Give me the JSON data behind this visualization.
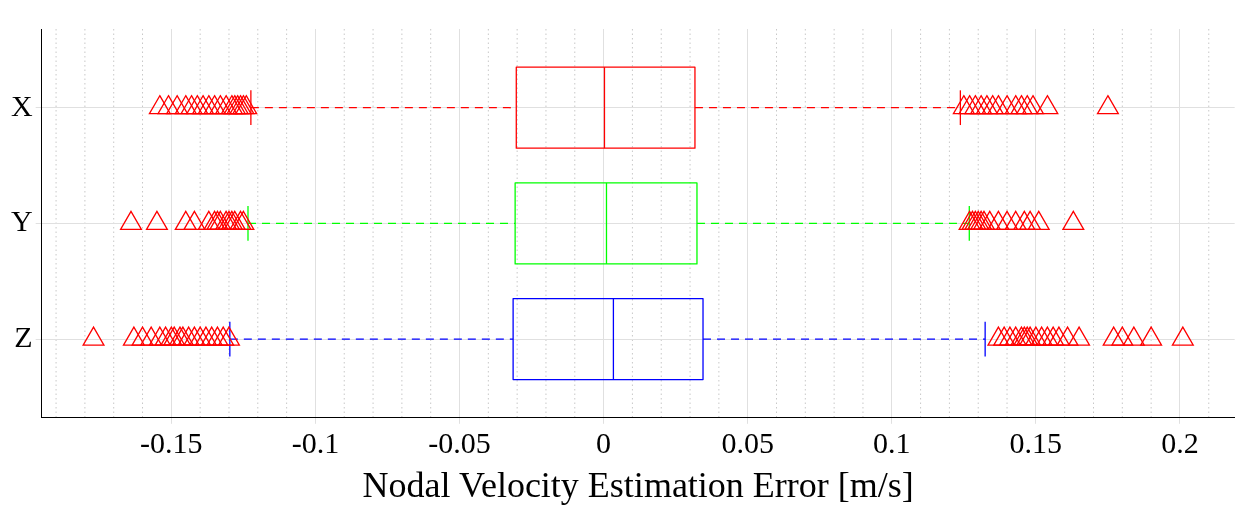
{
  "chart_data": {
    "type": "box",
    "orientation": "horizontal",
    "xlabel": "Nodal Velocity Estimation Error [m/s]",
    "categories": [
      "X",
      "Y",
      "Z"
    ],
    "colors": [
      "#ff0000",
      "#00ff00",
      "#0000ff"
    ],
    "line_style": "dashed",
    "grid": true,
    "boxes": [
      {
        "low": -0.1224,
        "q1": -0.0303,
        "median": 0.0003,
        "q3": 0.0317,
        "high": 0.1238
      },
      {
        "low": -0.1234,
        "q1": -0.0307,
        "median": 0.001,
        "q3": 0.0324,
        "high": 0.1269
      },
      {
        "low": -0.1297,
        "q1": -0.0314,
        "median": 0.0034,
        "q3": 0.0345,
        "high": 0.1324
      }
    ],
    "series": [
      {
        "type": "scatter",
        "color": "#ff0000",
        "marker": "triangle",
        "x": [
          "X",
          "X",
          "X",
          "X",
          "X",
          "X",
          "X",
          "X",
          "X",
          "X",
          "X",
          "X",
          "X",
          "X",
          "X",
          "X",
          "X",
          "X",
          "X",
          "X",
          "X",
          "X",
          "X",
          "X",
          "X",
          "X",
          "X",
          "X",
          "X",
          "X",
          "X",
          "Y",
          "Y",
          "Y",
          "Y",
          "Y",
          "Y",
          "Y",
          "Y",
          "Y",
          "Y",
          "Y",
          "Y",
          "Y",
          "Y",
          "Y",
          "Y",
          "Y",
          "Y",
          "Y",
          "Y",
          "Y",
          "Y",
          "Y",
          "Y",
          "Y",
          "Y",
          "Y",
          "Y",
          "Z",
          "Z",
          "Z",
          "Z",
          "Z",
          "Z",
          "Z",
          "Z",
          "Z",
          "Z",
          "Z",
          "Z",
          "Z",
          "Z",
          "Z",
          "Z",
          "Z",
          "Z",
          "Z",
          "Z",
          "Z",
          "Z",
          "Z",
          "Z",
          "Z",
          "Z",
          "Z",
          "Z",
          "Z",
          "Z",
          "Z",
          "Z",
          "Z",
          "Z",
          "Z",
          "Z",
          "Z",
          "Z"
        ],
        "values": [
          -0.154,
          -0.151,
          -0.148,
          -0.145,
          -0.143,
          -0.141,
          -0.139,
          -0.137,
          -0.135,
          -0.133,
          -0.131,
          -0.129,
          -0.128,
          -0.127,
          -0.126,
          -0.125,
          -0.124,
          0.125,
          0.127,
          0.129,
          0.131,
          0.133,
          0.135,
          0.137,
          0.14,
          0.143,
          0.145,
          0.147,
          0.149,
          0.154,
          0.175,
          -0.164,
          -0.155,
          -0.145,
          -0.142,
          -0.137,
          -0.135,
          -0.134,
          -0.133,
          -0.131,
          -0.13,
          -0.129,
          -0.128,
          -0.126,
          -0.125,
          0.127,
          0.128,
          0.129,
          0.13,
          0.131,
          0.132,
          0.134,
          0.137,
          0.14,
          0.143,
          0.146,
          0.148,
          0.151,
          0.163,
          -0.177,
          -0.163,
          -0.16,
          -0.157,
          -0.154,
          -0.152,
          -0.15,
          -0.149,
          -0.147,
          -0.146,
          -0.144,
          -0.142,
          -0.14,
          -0.138,
          -0.136,
          -0.134,
          -0.132,
          -0.13,
          0.137,
          0.139,
          0.141,
          0.143,
          0.145,
          0.146,
          0.147,
          0.148,
          0.15,
          0.152,
          0.154,
          0.156,
          0.158,
          0.161,
          0.165,
          0.177,
          0.18,
          0.184,
          0.19,
          0.201
        ]
      }
    ],
    "xlim": [
      -0.195,
      0.219
    ],
    "xticks": [
      -0.15,
      -0.1,
      -0.05,
      0,
      0.05,
      0.1,
      0.15,
      0.2
    ]
  }
}
